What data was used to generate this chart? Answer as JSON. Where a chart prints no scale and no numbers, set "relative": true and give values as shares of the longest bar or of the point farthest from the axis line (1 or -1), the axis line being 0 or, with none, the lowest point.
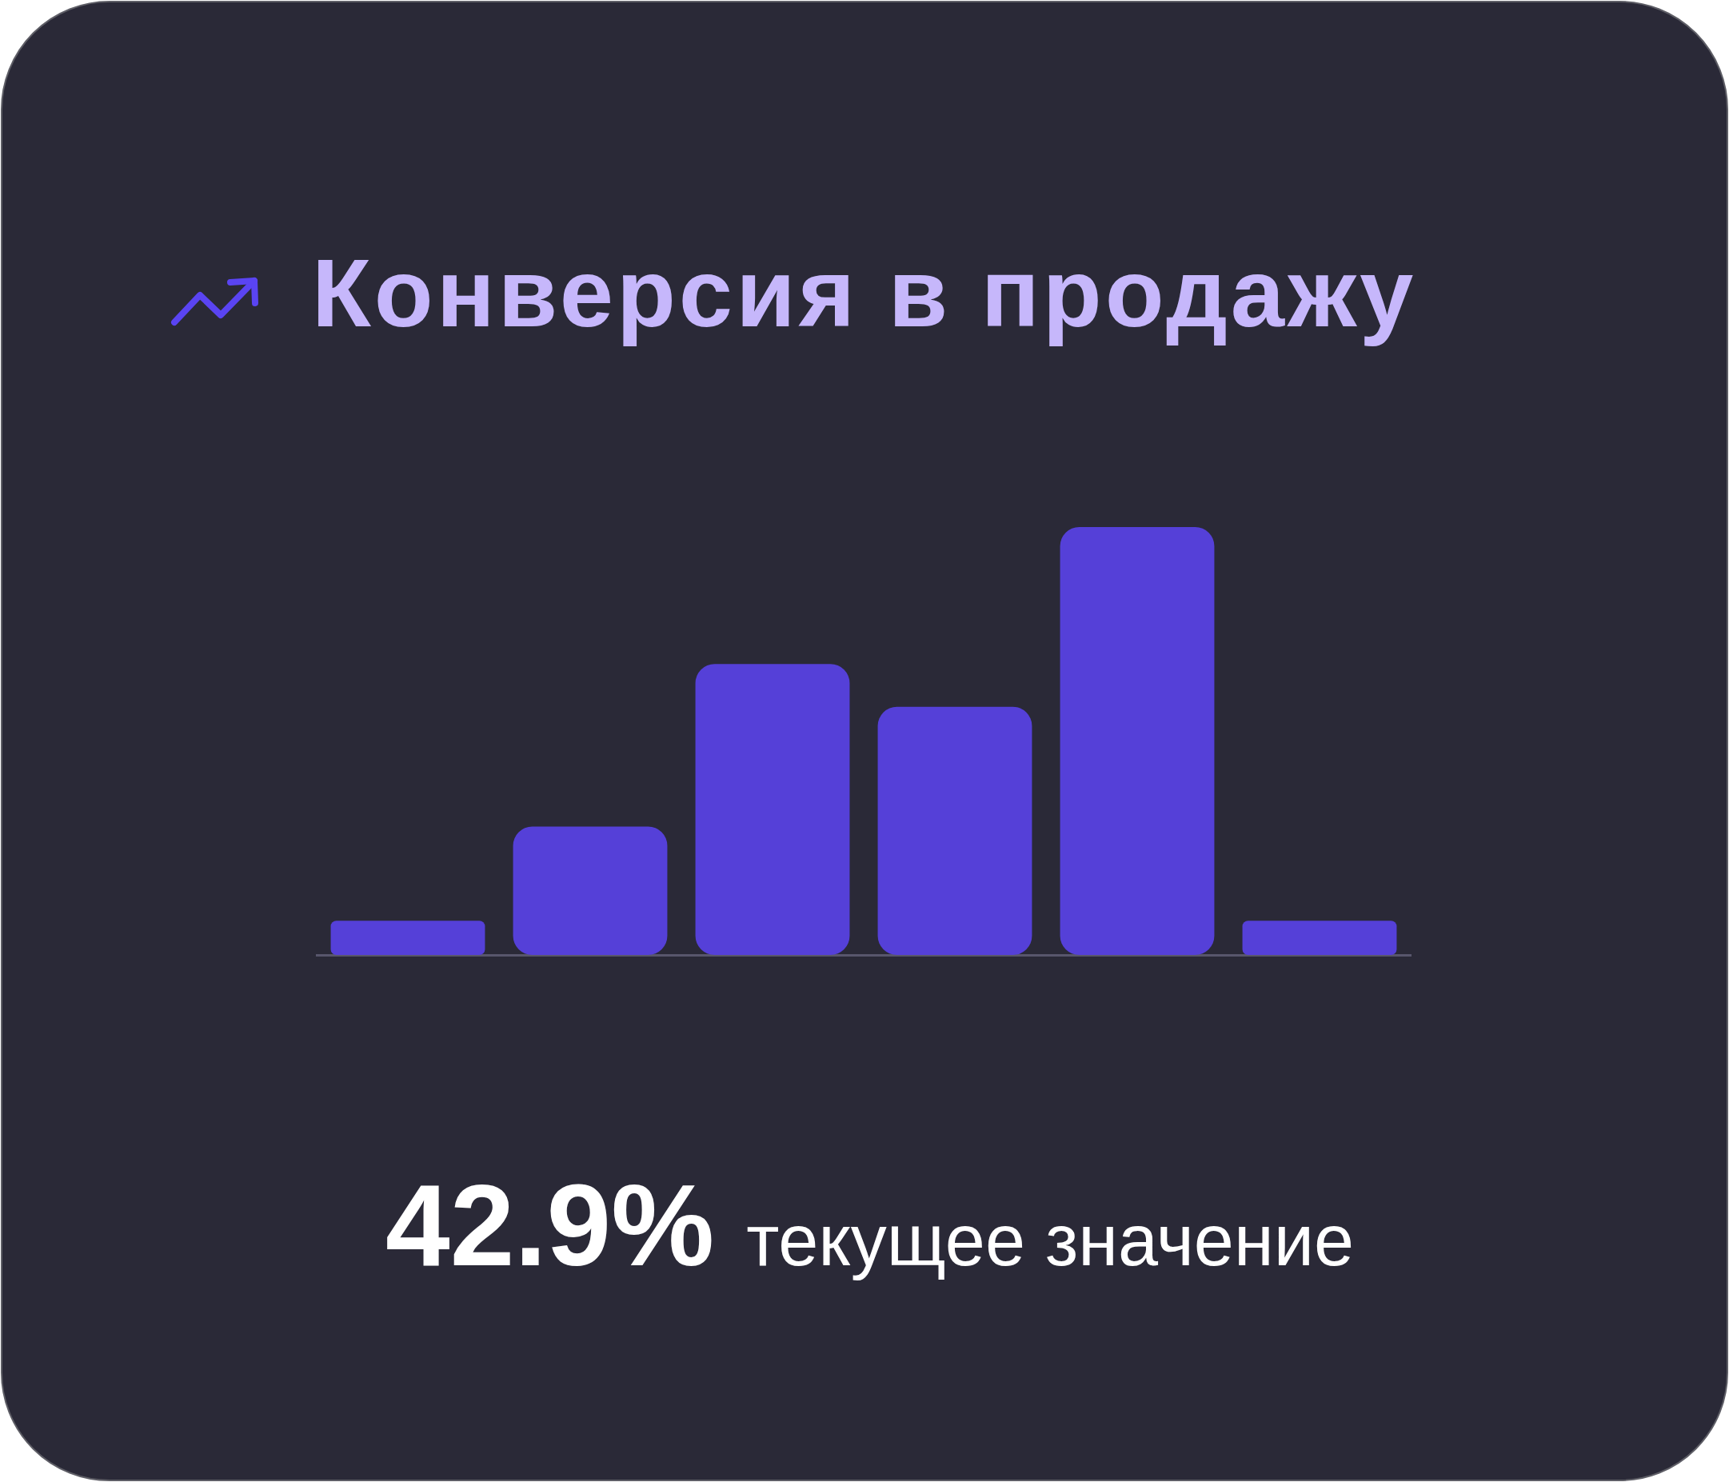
{
  "chart_data": {
    "type": "bar",
    "title": "Конверсия в продажу",
    "categories": [
      null,
      null,
      null,
      null,
      null,
      null
    ],
    "values": [
      0.08,
      0.3,
      0.68,
      0.58,
      1,
      0.08
    ],
    "color": "#5540d8",
    "relative": true,
    "annotations": [
      "42.9%",
      "текущее значение"
    ]
  }
}
